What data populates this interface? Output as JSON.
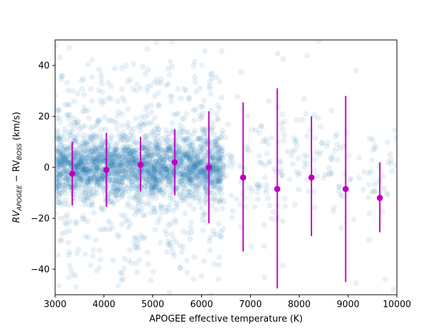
{
  "chart_data": {
    "type": "scatter",
    "title": "",
    "xlabel": "APOGEE effective temperature (K)",
    "ylabel": {
      "prefix": "RV",
      "sub1": "APOGEE",
      "minus": " − RV",
      "sub2": "BOSS",
      "suffix": " (km/s)"
    },
    "xlim": [
      3000,
      10000
    ],
    "ylim": [
      -50,
      50
    ],
    "x_ticks": [
      3000,
      4000,
      5000,
      6000,
      7000,
      8000,
      9000,
      10000
    ],
    "y_ticks": [
      -40,
      -20,
      0,
      20,
      40
    ],
    "grid": false,
    "legend": "none",
    "colors": {
      "scatter": "#1f77b4",
      "errorbar": "#bf00bf"
    },
    "scatter_clusters": [
      {
        "x_range": [
          3000,
          6450
        ],
        "y_center": 0,
        "y_core": 6,
        "y_halo": 24,
        "n": 2600
      },
      {
        "x_range": [
          6450,
          10000
        ],
        "y_center": 0,
        "y_core": 10,
        "y_halo": 30,
        "n": 220
      }
    ],
    "binned_means": [
      {
        "x": 3350,
        "y": -2.5,
        "err_low": -15,
        "err_high": 10
      },
      {
        "x": 4050,
        "y": -1,
        "err_low": -15.5,
        "err_high": 13.5
      },
      {
        "x": 4750,
        "y": 1,
        "err_low": -9.5,
        "err_high": 12
      },
      {
        "x": 5450,
        "y": 2,
        "err_low": -11,
        "err_high": 15
      },
      {
        "x": 6150,
        "y": 0,
        "err_low": -22,
        "err_high": 22
      },
      {
        "x": 6850,
        "y": -4,
        "err_low": -33,
        "err_high": 25.5
      },
      {
        "x": 7550,
        "y": -8.5,
        "err_low": -47.5,
        "err_high": 31
      },
      {
        "x": 8250,
        "y": -4,
        "err_low": -27,
        "err_high": 20
      },
      {
        "x": 8950,
        "y": -8.5,
        "err_low": -45,
        "err_high": 28
      },
      {
        "x": 9650,
        "y": -12,
        "err_low": -25.5,
        "err_high": 2
      }
    ]
  }
}
